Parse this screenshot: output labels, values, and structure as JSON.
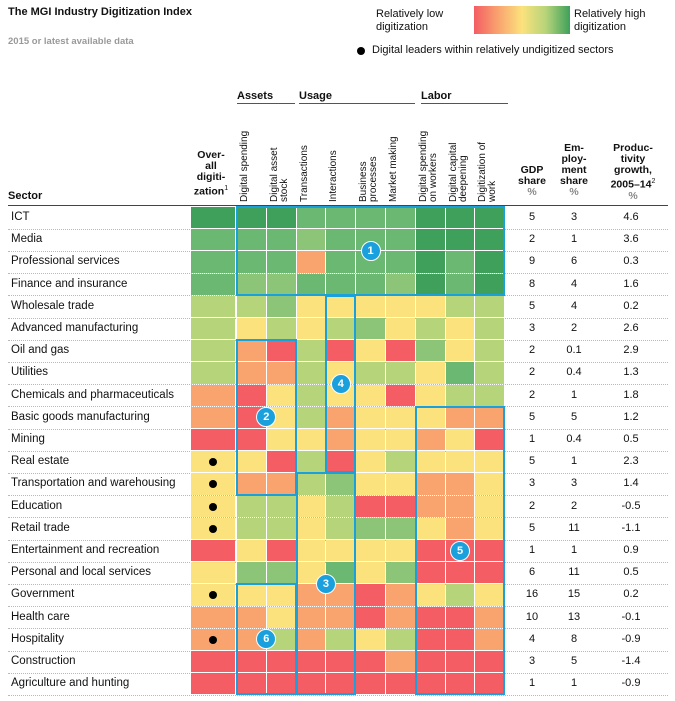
{
  "header": {
    "title": "The MGI Industry Digitization Index",
    "subtitle": "2015 or latest available data"
  },
  "legend": {
    "low_label_line1": "Relatively low",
    "low_label_line2": "digitization",
    "high_label_line1": "Relatively high",
    "high_label_line2": "digitization",
    "leader_label": "Digital leaders within relatively undigitized sectors"
  },
  "groups": {
    "assets": "Assets",
    "usage": "Usage",
    "labor": "Labor"
  },
  "colors": {
    "scale": [
      "#f35d63",
      "#f9a36f",
      "#fbe27c",
      "#b6d47a",
      "#8cc577",
      "#6bb872",
      "#3fa05b"
    ],
    "highlight_box": "#1aa0dc"
  },
  "chart_data": {
    "type": "heatmap",
    "title": "The MGI Industry Digitization Index",
    "subtitle": "2015 or latest available data",
    "value_scale": "0 = relatively low digitization, 6 = relatively high digitization",
    "sector_header": "Sector",
    "overall_header": [
      "Over-",
      "all",
      "digiti-",
      "zation"
    ],
    "overall_footnote": "1",
    "indicator_columns": [
      "Digital spending",
      [
        "Digital asset",
        "stock"
      ],
      "Transactions",
      "Interactions",
      [
        "Business",
        "processes"
      ],
      "Market making",
      [
        "Digital spending",
        "on workers"
      ],
      [
        "Digital capital",
        "deepening"
      ],
      [
        "Digitization of",
        "work"
      ]
    ],
    "numeric_headers": {
      "gdp": [
        "GDP",
        "share"
      ],
      "emp": [
        "Em-",
        "ploy-",
        "ment",
        "share"
      ],
      "prod": [
        "Produc-",
        "tivity",
        "growth,",
        "2005–14"
      ],
      "prod_footnote": "2",
      "unit": "%"
    },
    "rows": [
      {
        "sector": "ICT",
        "overall": 6,
        "leader": false,
        "cells": [
          6,
          6,
          5,
          5,
          5,
          5,
          6,
          6,
          6
        ],
        "gdp": "5",
        "emp": "3",
        "prod": "4.6"
      },
      {
        "sector": "Media",
        "overall": 5,
        "leader": false,
        "cells": [
          5,
          5,
          4,
          5,
          5,
          5,
          6,
          6,
          6
        ],
        "gdp": "2",
        "emp": "1",
        "prod": "3.6"
      },
      {
        "sector": "Professional services",
        "overall": 5,
        "leader": false,
        "cells": [
          5,
          5,
          1,
          5,
          5,
          5,
          6,
          5,
          6
        ],
        "gdp": "9",
        "emp": "6",
        "prod": "0.3"
      },
      {
        "sector": "Finance and insurance",
        "overall": 5,
        "leader": false,
        "cells": [
          4,
          4,
          5,
          5,
          5,
          4,
          6,
          5,
          6
        ],
        "gdp": "8",
        "emp": "4",
        "prod": "1.6"
      },
      {
        "sector": "Wholesale trade",
        "overall": 3,
        "leader": false,
        "cells": [
          3,
          4,
          2,
          2,
          2,
          2,
          2,
          3,
          3
        ],
        "gdp": "5",
        "emp": "4",
        "prod": "0.2"
      },
      {
        "sector": "Advanced manufacturing",
        "overall": 3,
        "leader": false,
        "cells": [
          2,
          3,
          2,
          3,
          4,
          2,
          3,
          2,
          3
        ],
        "gdp": "3",
        "emp": "2",
        "prod": "2.6"
      },
      {
        "sector": "Oil and gas",
        "overall": 3,
        "leader": false,
        "cells": [
          1,
          0,
          3,
          0,
          2,
          0,
          4,
          2,
          3
        ],
        "gdp": "2",
        "emp": "0.1",
        "prod": "2.9"
      },
      {
        "sector": "Utilities",
        "overall": 3,
        "leader": false,
        "cells": [
          1,
          1,
          3,
          2,
          3,
          3,
          2,
          5,
          3
        ],
        "gdp": "2",
        "emp": "0.4",
        "prod": "1.3"
      },
      {
        "sector": "Chemicals and pharmaceuticals",
        "overall": 1,
        "leader": false,
        "cells": [
          0,
          2,
          3,
          2,
          2,
          0,
          2,
          3,
          3
        ],
        "gdp": "2",
        "emp": "1",
        "prod": "1.8"
      },
      {
        "sector": "Basic goods manufacturing",
        "overall": 1,
        "leader": false,
        "cells": [
          0,
          2,
          3,
          1,
          2,
          2,
          2,
          1,
          1
        ],
        "gdp": "5",
        "emp": "5",
        "prod": "1.2"
      },
      {
        "sector": "Mining",
        "overall": 0,
        "leader": false,
        "cells": [
          0,
          2,
          2,
          1,
          2,
          2,
          1,
          2,
          0
        ],
        "gdp": "1",
        "emp": "0.4",
        "prod": "0.5"
      },
      {
        "sector": "Real estate",
        "overall": 2,
        "leader": true,
        "cells": [
          2,
          0,
          3,
          0,
          2,
          3,
          2,
          2,
          2
        ],
        "gdp": "5",
        "emp": "1",
        "prod": "2.3"
      },
      {
        "sector": "Transportation and warehousing",
        "overall": 2,
        "leader": true,
        "cells": [
          1,
          1,
          3,
          4,
          2,
          2,
          1,
          1,
          2
        ],
        "gdp": "3",
        "emp": "3",
        "prod": "1.4"
      },
      {
        "sector": "Education",
        "overall": 2,
        "leader": true,
        "cells": [
          3,
          3,
          2,
          3,
          0,
          0,
          1,
          1,
          2
        ],
        "gdp": "2",
        "emp": "2",
        "prod": "-0.5"
      },
      {
        "sector": "Retail trade",
        "overall": 2,
        "leader": true,
        "cells": [
          3,
          3,
          2,
          3,
          4,
          4,
          2,
          1,
          2
        ],
        "gdp": "5",
        "emp": "11",
        "prod": "-1.1"
      },
      {
        "sector": "Entertainment and recreation",
        "overall": 0,
        "leader": false,
        "cells": [
          2,
          0,
          2,
          2,
          2,
          2,
          0,
          0,
          0
        ],
        "gdp": "1",
        "emp": "1",
        "prod": "0.9"
      },
      {
        "sector": "Personal and local services",
        "overall": 2,
        "leader": false,
        "cells": [
          4,
          4,
          2,
          5,
          2,
          4,
          0,
          0,
          0
        ],
        "gdp": "6",
        "emp": "11",
        "prod": "0.5"
      },
      {
        "sector": "Government",
        "overall": 2,
        "leader": true,
        "cells": [
          2,
          2,
          1,
          1,
          0,
          1,
          2,
          3,
          2
        ],
        "gdp": "16",
        "emp": "15",
        "prod": "0.2"
      },
      {
        "sector": "Health care",
        "overall": 1,
        "leader": false,
        "cells": [
          1,
          2,
          1,
          1,
          0,
          1,
          0,
          0,
          1
        ],
        "gdp": "10",
        "emp": "13",
        "prod": "-0.1"
      },
      {
        "sector": "Hospitality",
        "overall": 1,
        "leader": true,
        "cells": [
          1,
          3,
          1,
          3,
          2,
          3,
          0,
          0,
          1
        ],
        "gdp": "4",
        "emp": "8",
        "prod": "-0.9"
      },
      {
        "sector": "Construction",
        "overall": 0,
        "leader": false,
        "cells": [
          0,
          0,
          0,
          0,
          0,
          1,
          0,
          0,
          0
        ],
        "gdp": "3",
        "emp": "5",
        "prod": "-1.4"
      },
      {
        "sector": "Agriculture and hunting",
        "overall": 0,
        "leader": false,
        "cells": [
          0,
          0,
          0,
          0,
          0,
          0,
          0,
          0,
          0
        ],
        "gdp": "1",
        "emp": "1",
        "prod": "-0.9"
      }
    ],
    "highlight_boxes": [
      {
        "label": "1",
        "rows": [
          0,
          3
        ],
        "cols": [
          0,
          8
        ]
      },
      {
        "label": "2",
        "rows": [
          6,
          12
        ],
        "cols": [
          0,
          1
        ]
      },
      {
        "label": "3",
        "rows": [
          12,
          21
        ],
        "cols": [
          2,
          3
        ]
      },
      {
        "label": "4",
        "rows": [
          4,
          11
        ],
        "cols": [
          3,
          3
        ]
      },
      {
        "label": "5",
        "rows": [
          9,
          21
        ],
        "cols": [
          6,
          8
        ]
      },
      {
        "label": "6",
        "rows": [
          17,
          21
        ],
        "cols": [
          0,
          1
        ]
      }
    ]
  }
}
